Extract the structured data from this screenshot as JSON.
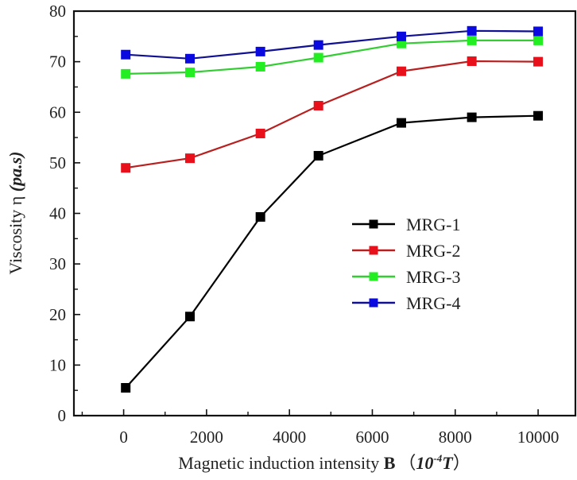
{
  "chart_data": {
    "type": "line",
    "title": "",
    "xlabel": {
      "prefix": "Magnetic induction intensity ",
      "bold": "B",
      "open": "（",
      "unit_base": "10",
      "unit_exp": "-4",
      "unit_sym": "T",
      "close": "）"
    },
    "ylabel": {
      "prefix": "Viscosity η ",
      "unit": "(pa.s)"
    },
    "xlim": [
      -1200,
      10900
    ],
    "ylim": [
      0,
      80
    ],
    "xticks": [
      0,
      2000,
      4000,
      6000,
      8000,
      10000
    ],
    "xtick_labels": [
      "0",
      "2000",
      "4000",
      "6000",
      "8000",
      "10000"
    ],
    "yticks": [
      0,
      10,
      20,
      30,
      40,
      50,
      60,
      70,
      80
    ],
    "ytick_labels": [
      "0",
      "10",
      "20",
      "30",
      "40",
      "50",
      "60",
      "70",
      "80"
    ],
    "grid": false,
    "legend_position": "center-right",
    "x": [
      50,
      1600,
      3300,
      4700,
      6700,
      8400,
      10000
    ],
    "series": [
      {
        "name": "MRG-1",
        "color": "#000000",
        "line_color": "#000000",
        "values": [
          5.5,
          19.6,
          39.3,
          51.4,
          57.9,
          59.0,
          59.3
        ]
      },
      {
        "name": "MRG-2",
        "color": "#e8101a",
        "line_color": "#b82020",
        "values": [
          49.0,
          50.9,
          55.8,
          61.3,
          68.1,
          70.1,
          70.0
        ]
      },
      {
        "name": "MRG-3",
        "color": "#22ee22",
        "line_color": "#33cc33",
        "values": [
          67.6,
          67.9,
          69.0,
          70.8,
          73.6,
          74.2,
          74.2
        ]
      },
      {
        "name": "MRG-4",
        "color": "#0a0ae0",
        "line_color": "#101090",
        "values": [
          71.4,
          70.6,
          72.0,
          73.3,
          75.0,
          76.1,
          76.0
        ]
      }
    ]
  }
}
